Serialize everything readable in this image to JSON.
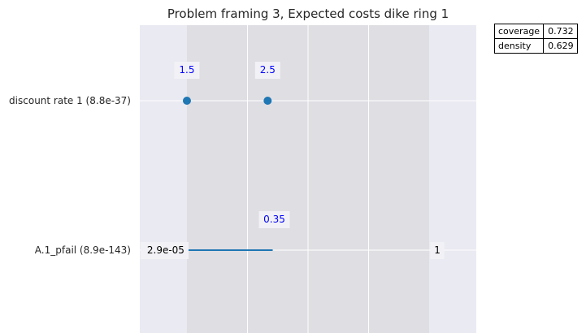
{
  "chart_data": {
    "type": "scatter",
    "title": "Problem framing 3, Expected costs dike ring 1",
    "xlabel": "",
    "ylabel": "",
    "grid": true,
    "x_range": [
      0,
      1
    ],
    "box_x_range": [
      0.14,
      0.86
    ],
    "rows": [
      {
        "label": "discount rate 1 (8.8e-37)",
        "kind": "categorical",
        "points": [
          {
            "label": "1.5",
            "x": 0.14
          },
          {
            "label": "2.5",
            "x": 0.38
          }
        ]
      },
      {
        "label": "A.1_pfail (8.9e-143)",
        "kind": "continuous",
        "segment": {
          "start": 0.14,
          "end": 0.395
        },
        "min_label": "2.9e-05",
        "max_label": "1",
        "value_label": "0.35"
      }
    ]
  },
  "stats_table": {
    "rows": [
      {
        "key": "coverage",
        "value": "0.732"
      },
      {
        "key": "density",
        "value": "0.629"
      }
    ]
  },
  "colors": {
    "axes_bg": "#eaeaf2",
    "box_shade": "#dfdee3",
    "grid": "#ffffff",
    "marker": "#1f77b4",
    "value_text": "#0000ff",
    "label_box": "#f2f2f6"
  }
}
